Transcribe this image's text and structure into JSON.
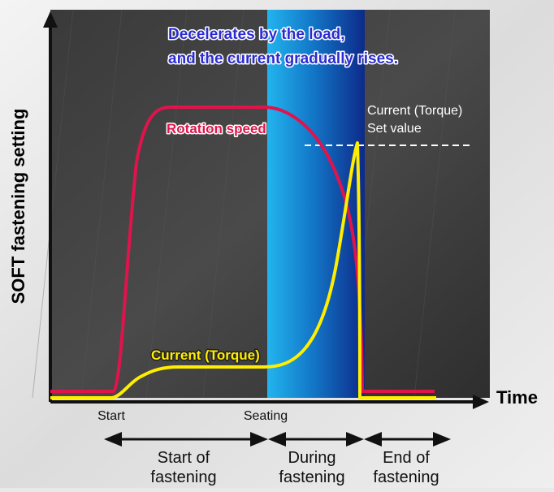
{
  "chart_data": {
    "type": "line",
    "title": "",
    "ylabel": "SOFT fastening setting",
    "xlabel": "Time",
    "x_ticks": [
      "Start",
      "Seating"
    ],
    "phases": [
      "Start of fastening",
      "During fastening",
      "End of fastening"
    ],
    "annotation": {
      "line1": "Decelerates by the load,",
      "line2": "and the current gradually rises."
    },
    "set_value_label": {
      "line1": "Current (Torque)",
      "line2": "Set value"
    },
    "series": [
      {
        "name": "Rotation speed",
        "color": "#e0144c"
      },
      {
        "name": "Current (Torque)",
        "color": "#ffee00"
      }
    ],
    "grid": false
  }
}
